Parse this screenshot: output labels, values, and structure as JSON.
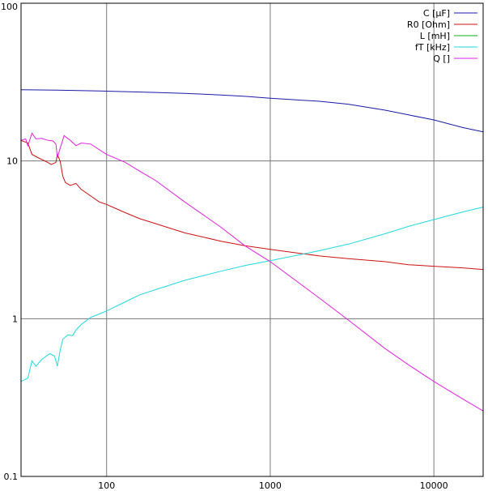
{
  "chart_data": {
    "type": "line",
    "title": "",
    "xlabel": "",
    "ylabel": "",
    "x_scale": "log",
    "y_scale": "log",
    "xlim": [
      30,
      20000
    ],
    "ylim": [
      0.1,
      100
    ],
    "x_ticks": [
      {
        "value": 100,
        "label": "100"
      },
      {
        "value": 1000,
        "label": "1000"
      },
      {
        "value": 10000,
        "label": "10000"
      }
    ],
    "y_ticks": [
      {
        "value": 0.1,
        "label": "0.1"
      },
      {
        "value": 1,
        "label": "1"
      },
      {
        "value": 10,
        "label": "10"
      },
      {
        "value": 100,
        "label": "100"
      }
    ],
    "grid": true,
    "legend_position": "top-right",
    "series": [
      {
        "name": "C [µF]",
        "color": "#1a1aa8",
        "points": [
          [
            30,
            28.3
          ],
          [
            50,
            28.1
          ],
          [
            100,
            27.7
          ],
          [
            200,
            27.2
          ],
          [
            300,
            26.8
          ],
          [
            500,
            26.2
          ],
          [
            700,
            25.7
          ],
          [
            1000,
            25.0
          ],
          [
            2000,
            23.9
          ],
          [
            3000,
            22.9
          ],
          [
            5000,
            21.0
          ],
          [
            7000,
            19.6
          ],
          [
            10000,
            18.2
          ],
          [
            15000,
            16.3
          ],
          [
            20000,
            15.3
          ]
        ]
      },
      {
        "name": "R0 [Ohm]",
        "color": "#d01010",
        "points": [
          [
            30,
            13.5
          ],
          [
            33,
            13.0
          ],
          [
            35,
            11.0
          ],
          [
            38,
            10.5
          ],
          [
            42,
            10.0
          ],
          [
            46,
            9.5
          ],
          [
            49,
            9.8
          ],
          [
            50,
            11.0
          ],
          [
            52,
            10.0
          ],
          [
            54,
            8.0
          ],
          [
            56,
            7.3
          ],
          [
            60,
            7.0
          ],
          [
            65,
            7.2
          ],
          [
            70,
            6.6
          ],
          [
            80,
            6.0
          ],
          [
            90,
            5.5
          ],
          [
            100,
            5.3
          ],
          [
            130,
            4.7
          ],
          [
            160,
            4.3
          ],
          [
            200,
            4.0
          ],
          [
            300,
            3.5
          ],
          [
            500,
            3.1
          ],
          [
            700,
            2.9
          ],
          [
            1000,
            2.75
          ],
          [
            2000,
            2.5
          ],
          [
            3000,
            2.4
          ],
          [
            5000,
            2.3
          ],
          [
            7000,
            2.2
          ],
          [
            10000,
            2.15
          ],
          [
            15000,
            2.1
          ],
          [
            20000,
            2.05
          ]
        ]
      },
      {
        "name": "L [mH]",
        "color": "#10b010",
        "points": []
      },
      {
        "name": "fT [kHz]",
        "color": "#20d8e0",
        "points": [
          [
            30,
            0.4
          ],
          [
            33,
            0.42
          ],
          [
            35,
            0.54
          ],
          [
            37,
            0.5
          ],
          [
            40,
            0.55
          ],
          [
            45,
            0.6
          ],
          [
            48,
            0.58
          ],
          [
            50,
            0.5
          ],
          [
            52,
            0.63
          ],
          [
            54,
            0.74
          ],
          [
            58,
            0.79
          ],
          [
            62,
            0.78
          ],
          [
            65,
            0.85
          ],
          [
            70,
            0.92
          ],
          [
            80,
            1.02
          ],
          [
            90,
            1.07
          ],
          [
            100,
            1.12
          ],
          [
            130,
            1.28
          ],
          [
            160,
            1.42
          ],
          [
            200,
            1.53
          ],
          [
            300,
            1.75
          ],
          [
            500,
            2.0
          ],
          [
            700,
            2.17
          ],
          [
            1000,
            2.33
          ],
          [
            2000,
            2.7
          ],
          [
            3000,
            2.97
          ],
          [
            5000,
            3.45
          ],
          [
            7000,
            3.85
          ],
          [
            10000,
            4.25
          ],
          [
            15000,
            4.75
          ],
          [
            20000,
            5.1
          ]
        ]
      },
      {
        "name": "Q []",
        "color": "#e020e0",
        "points": [
          [
            30,
            13.5
          ],
          [
            32,
            13.8
          ],
          [
            33,
            12.5
          ],
          [
            35,
            15.0
          ],
          [
            37,
            13.8
          ],
          [
            40,
            13.9
          ],
          [
            44,
            13.5
          ],
          [
            47,
            13.4
          ],
          [
            49,
            12.8
          ],
          [
            50,
            10.5
          ],
          [
            52,
            12.0
          ],
          [
            55,
            14.5
          ],
          [
            60,
            13.5
          ],
          [
            65,
            12.5
          ],
          [
            70,
            13.0
          ],
          [
            80,
            12.8
          ],
          [
            100,
            11.0
          ],
          [
            130,
            9.8
          ],
          [
            160,
            8.6
          ],
          [
            200,
            7.5
          ],
          [
            300,
            5.5
          ],
          [
            500,
            3.8
          ],
          [
            700,
            2.9
          ],
          [
            1000,
            2.3
          ],
          [
            2000,
            1.35
          ],
          [
            3000,
            0.98
          ],
          [
            5000,
            0.65
          ],
          [
            7000,
            0.51
          ],
          [
            10000,
            0.4
          ],
          [
            15000,
            0.31
          ],
          [
            20000,
            0.26
          ]
        ]
      }
    ]
  }
}
